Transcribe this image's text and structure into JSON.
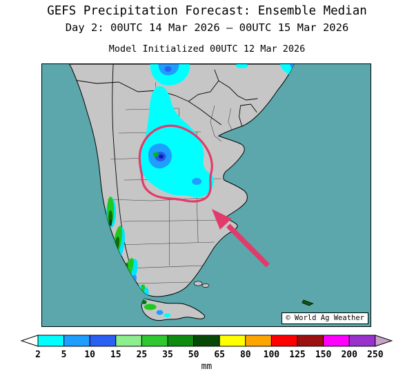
{
  "header": {
    "title": "GEFS Precipitation Forecast: Ensemble Median",
    "subtitle": "Day 2: 00UTC 14 Mar 2026 — 00UTC 15 Mar 2026",
    "model_init": "Model Initialized 00UTC 12 Mar 2026"
  },
  "map": {
    "watermark": "© World Ag Weather",
    "colors": {
      "ocean": "#5BA7AB",
      "land": "#C6C6C6",
      "coast": "#000000",
      "annotation": "#E23A6B"
    }
  },
  "colorbar": {
    "unit": "mm",
    "boundary_labels": [
      "2",
      "5",
      "10",
      "15",
      "25",
      "35",
      "50",
      "65",
      "80",
      "100",
      "125",
      "150",
      "200",
      "250"
    ],
    "segment_colors": [
      "#00FFFF",
      "#1E9EFF",
      "#2B60F5",
      "#8CEE8C",
      "#2FC82F",
      "#0E8C0E",
      "#074807",
      "#FFFF00",
      "#FFA500",
      "#FF0000",
      "#9B1010",
      "#FF00FF",
      "#9932CC"
    ],
    "underflow_color": "#FFFFFF",
    "overflow_color": "#C8A2C8"
  }
}
